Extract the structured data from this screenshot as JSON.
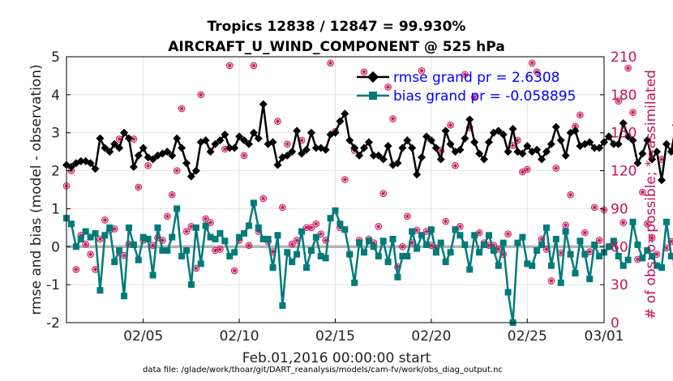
{
  "chart_data": {
    "type": "line",
    "title": "Tropics 12838 / 12847 = 99.930%",
    "subtitle": "AIRCRAFT_U_WIND_COMPONENT @ 525 hPa",
    "xlabel": "Feb.01,2016 00:00:00 start",
    "ylabel": "rmse and bias (model - observation)",
    "y2label": "# of obs: o=possible; *=assimilated",
    "footer": "data file: /glade/work/thoar/git/DART_reanalysis/models/cam-fv/work/obs_diag_output.nc",
    "xlim": [
      1.0,
      29.0
    ],
    "ylim": [
      -2,
      5
    ],
    "y2lim": [
      0,
      210
    ],
    "x_ticks": [
      {
        "value": 5,
        "label": "02/05"
      },
      {
        "value": 10,
        "label": "02/10"
      },
      {
        "value": 15,
        "label": "02/15"
      },
      {
        "value": 20,
        "label": "02/20"
      },
      {
        "value": 25,
        "label": "02/25"
      },
      {
        "value": 29,
        "label": "03/01"
      }
    ],
    "y_ticks": [
      "5",
      "4",
      "3",
      "2",
      "1",
      "0",
      "-1",
      "-2"
    ],
    "y2_ticks": [
      "210",
      "180",
      "150",
      "120",
      "90",
      "60",
      "30",
      "0"
    ],
    "colors": {
      "rmse": "#000000",
      "bias": "#007a7a",
      "obs": "#c8115a",
      "zero": "#b4b4b4"
    },
    "legend": {
      "rmse_label": "rmse grand pr = 2.6308",
      "bias_label": "bias grand pr = -0.058895"
    },
    "x_start": 1.0,
    "x_step": 0.25,
    "rmse": [
      2.15,
      2.1,
      2.2,
      2.25,
      2.25,
      2.2,
      2.05,
      2.85,
      2.6,
      2.5,
      2.7,
      2.6,
      3.0,
      2.85,
      2.1,
      2.4,
      2.6,
      2.35,
      2.3,
      2.4,
      2.45,
      2.5,
      2.4,
      2.85,
      2.6,
      2.2,
      1.85,
      2.0,
      2.75,
      2.8,
      2.5,
      2.7,
      2.8,
      2.95,
      2.6,
      2.6,
      2.9,
      2.8,
      2.7,
      3.0,
      2.85,
      3.75,
      2.7,
      2.75,
      2.15,
      2.35,
      2.4,
      2.5,
      3.05,
      2.45,
      2.55,
      3.0,
      2.6,
      2.6,
      2.55,
      2.95,
      3.0,
      3.3,
      3.5,
      2.8,
      2.6,
      2.4,
      2.6,
      2.75,
      2.4,
      2.4,
      2.3,
      2.65,
      2.15,
      2.2,
      2.6,
      2.8,
      2.6,
      1.9,
      2.35,
      2.9,
      2.8,
      2.6,
      2.3,
      3.05,
      2.7,
      2.5,
      2.55,
      2.85,
      3.35,
      2.75,
      2.45,
      2.3,
      2.75,
      3.0,
      3.05,
      2.95,
      2.5,
      3.1,
      2.5,
      2.45,
      2.65,
      2.5,
      2.55,
      2.3,
      2.5,
      2.7,
      3.15,
      2.8,
      2.4,
      3.0,
      3.05,
      2.65,
      2.7,
      2.75,
      2.6,
      2.6,
      2.75,
      2.9,
      2.7,
      2.7,
      3.25,
      2.9,
      2.8,
      2.2,
      2.45,
      2.8,
      2.3,
      2.5,
      1.75,
      2.7,
      2.5,
      3.2,
      2.75,
      2.75,
      2.7,
      2.9,
      1.9,
      2.5,
      2.95,
      2.2,
      2.7,
      2.75
    ],
    "bias": [
      0.75,
      0.6,
      0.0,
      0.2,
      0.4,
      0.25,
      0.35,
      -1.15,
      0.3,
      0.5,
      -0.4,
      -0.1,
      -1.3,
      0.5,
      0.05,
      -0.35,
      0.25,
      0.2,
      -0.75,
      0.5,
      -0.1,
      -0.1,
      0.25,
      1.0,
      -0.25,
      -0.1,
      -1.0,
      0.5,
      -0.45,
      0.55,
      0.25,
      0.2,
      0.35,
      0.15,
      -0.25,
      -0.15,
      0.25,
      0.35,
      0.55,
      1.15,
      0.5,
      0.2,
      0.2,
      -0.55,
      0.3,
      -1.55,
      -0.15,
      -0.4,
      -0.2,
      0.4,
      -0.55,
      -0.1,
      0.25,
      -0.25,
      -0.3,
      0.75,
      0.95,
      0.6,
      0.45,
      -0.2,
      -0.95,
      0.1,
      -0.15,
      0.15,
      0.0,
      -0.25,
      0.15,
      -0.4,
      0.2,
      -0.8,
      -0.25,
      -0.25,
      0.4,
      -0.05,
      0.3,
      0.05,
      0.45,
      -0.15,
      0.1,
      -0.4,
      -0.15,
      0.45,
      0.3,
      0.05,
      -0.6,
      0.3,
      -0.15,
      0.05,
      0.3,
      -0.1,
      -0.5,
      0.1,
      -1.2,
      -2.0,
      0.1,
      0.25,
      -0.45,
      -0.5,
      -0.1,
      0.05,
      0.5,
      -0.5,
      0.2,
      -0.95,
      0.4,
      -0.2,
      -0.7,
      0.15,
      -0.2,
      -0.85,
      0.05,
      -0.25,
      -0.15,
      0.0,
      0.15,
      -0.25,
      -0.5,
      -0.35,
      0.65,
      0.05,
      -0.3,
      -0.1,
      -0.25,
      -0.5,
      -0.55,
      0.65,
      -0.25,
      -0.45,
      -0.45,
      0.25,
      -0.95,
      0.05,
      -0.4,
      -0.5,
      -0.55,
      0.35
    ],
    "obs_count": [
      108,
      120,
      42,
      69,
      62,
      54,
      42,
      66,
      81,
      73,
      74,
      145,
      53,
      62,
      145,
      107,
      65,
      124,
      61,
      67,
      65,
      84,
      101,
      120,
      169,
      72,
      76,
      43,
      180,
      82,
      79,
      57,
      58,
      137,
      203,
      41,
      65,
      132,
      61,
      203,
      72,
      98,
      64,
      56,
      159,
      91,
      141,
      62,
      65,
      144,
      75,
      75,
      78,
      70,
      65,
      205,
      151,
      75,
      113,
      54,
      136,
      65,
      198,
      66,
      63,
      76,
      102,
      186,
      161,
      44,
      60,
      84,
      63,
      73,
      199,
      72,
      61,
      59,
      136,
      80,
      156,
      124,
      76,
      196,
      154,
      178,
      71,
      63,
      61,
      61,
      58,
      54,
      70,
      140,
      144,
      119,
      121,
      205,
      198,
      66,
      58,
      33,
      122,
      55,
      77,
      101,
      155,
      164,
      71,
      56,
      91,
      65,
      89,
      60,
      63,
      175,
      79,
      201,
      166,
      50,
      103,
      78,
      67,
      54,
      129,
      59,
      64,
      62,
      55,
      71,
      61,
      122,
      172,
      67,
      61,
      54,
      53,
      36,
      114,
      103,
      72,
      60
    ]
  }
}
